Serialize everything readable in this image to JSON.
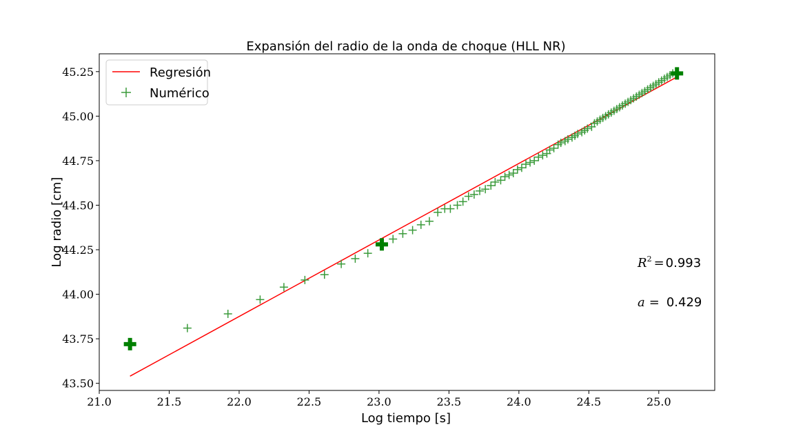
{
  "chart_data": {
    "type": "scatter",
    "title": "Expansión del radio de la onda de choque (HLL NR)",
    "xlabel": "Log tiempo [s]",
    "ylabel": "Log radio [cm]",
    "xlim": [
      21.0,
      25.4
    ],
    "ylim": [
      43.46,
      45.35
    ],
    "xticks": [
      "21.0",
      "21.5",
      "22.0",
      "22.5",
      "23.0",
      "23.5",
      "24.0",
      "24.5",
      "25.0"
    ],
    "yticks": [
      "43.50",
      "43.75",
      "44.00",
      "44.25",
      "44.50",
      "44.75",
      "45.00",
      "45.25"
    ],
    "grid": false,
    "legend": {
      "position": "top-left",
      "entries": [
        "Regresión",
        "Numérico"
      ]
    },
    "colors": {
      "regression": "#ff0000",
      "numeric": "#3a9a3a",
      "highlight": "#008000"
    },
    "series": [
      {
        "name": "Regresión",
        "kind": "line",
        "x": [
          21.22,
          25.13
        ],
        "y": [
          43.54,
          45.22
        ]
      },
      {
        "name": "Numérico",
        "kind": "scatter",
        "marker": "+",
        "x": [
          21.63,
          21.92,
          22.15,
          22.32,
          22.47,
          22.61,
          22.73,
          22.83,
          22.92,
          23.03,
          23.1,
          23.17,
          23.24,
          23.3,
          23.36,
          23.42,
          23.47,
          23.51,
          23.56,
          23.6,
          23.64,
          23.68,
          23.72,
          23.76,
          23.8,
          23.83,
          23.87,
          23.9,
          23.93,
          23.96,
          23.99,
          24.02,
          24.05,
          24.08,
          24.11,
          24.14,
          24.17,
          24.2,
          24.22,
          24.25,
          24.28,
          24.3,
          24.33,
          24.35,
          24.38,
          24.4,
          24.42,
          24.45,
          24.47,
          24.49,
          24.52,
          24.54,
          24.56,
          24.58,
          24.6,
          24.62,
          24.64,
          24.66,
          24.68,
          24.7,
          24.72,
          24.74,
          24.76,
          24.78,
          24.8,
          24.82,
          24.84,
          24.86,
          24.88,
          24.9,
          24.92,
          24.94,
          24.96,
          24.98,
          25.0,
          25.02,
          25.04,
          25.06,
          25.08,
          25.1
        ],
        "y": [
          43.81,
          43.89,
          43.97,
          44.04,
          44.08,
          44.11,
          44.17,
          44.2,
          44.23,
          44.28,
          44.31,
          44.34,
          44.36,
          44.39,
          44.41,
          44.46,
          44.48,
          44.48,
          44.5,
          44.52,
          44.55,
          44.56,
          44.58,
          44.59,
          44.61,
          44.63,
          44.64,
          44.66,
          44.67,
          44.68,
          44.7,
          44.71,
          44.73,
          44.74,
          44.75,
          44.77,
          44.78,
          44.79,
          44.81,
          44.82,
          44.84,
          44.85,
          44.86,
          44.87,
          44.88,
          44.89,
          44.9,
          44.91,
          44.92,
          44.93,
          44.94,
          44.96,
          44.97,
          44.98,
          44.99,
          45.0,
          45.01,
          45.02,
          45.03,
          45.04,
          45.05,
          45.06,
          45.07,
          45.08,
          45.09,
          45.1,
          45.11,
          45.12,
          45.13,
          45.14,
          45.15,
          45.16,
          45.17,
          45.18,
          45.19,
          45.2,
          45.21,
          45.22,
          45.23,
          45.24
        ]
      },
      {
        "kind": "highlight",
        "marker": "bold-plus",
        "x": [
          21.22,
          23.02,
          25.13
        ],
        "y": [
          43.72,
          44.28,
          45.24
        ]
      }
    ],
    "annotations": {
      "r2_label": "R",
      "r2_sup": "2",
      "r2_eq": "=",
      "r2_value": "0.993",
      "a_label": "a",
      "a_eq": "=",
      "a_value": "0.429"
    }
  }
}
